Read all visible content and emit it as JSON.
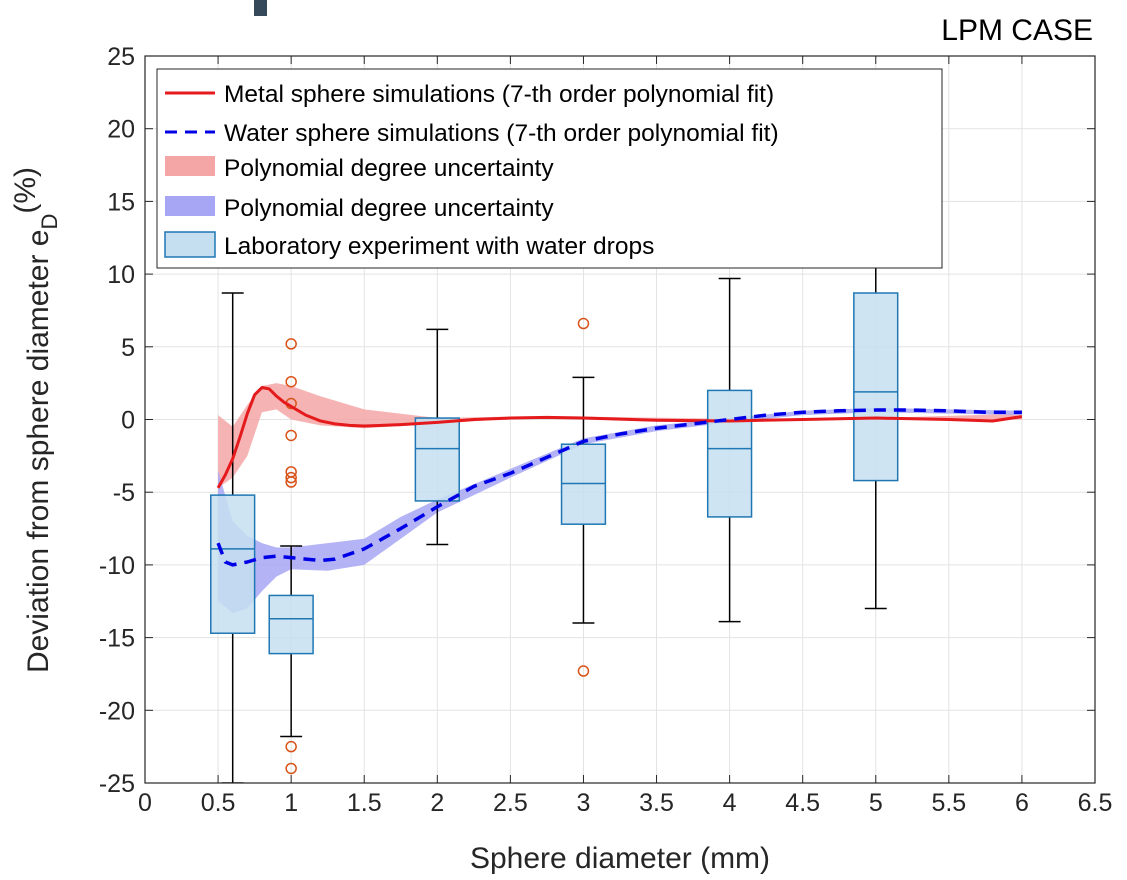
{
  "chart_data": {
    "type": "box",
    "title": "LPM CASE",
    "xlabel": "Sphere diameter (mm)",
    "ylabel_main": "Deviation from sphere diameter e",
    "ylabel_sub": "D",
    "ylabel_tail": "(%)",
    "xlim": [
      0,
      6.5
    ],
    "ylim": [
      -25,
      25
    ],
    "xticks": [
      0,
      0.5,
      1,
      1.5,
      2,
      2.5,
      3,
      3.5,
      4,
      4.5,
      5,
      5.5,
      6,
      6.5
    ],
    "xtick_labels": [
      "0",
      "0.5",
      "1",
      "1.5",
      "2",
      "2.5",
      "3",
      "3.5",
      "4",
      "4.5",
      "5",
      "5.5",
      "6",
      "6.5"
    ],
    "yticks": [
      -25,
      -20,
      -15,
      -10,
      -5,
      0,
      5,
      10,
      15,
      20,
      25
    ],
    "ytick_labels": [
      "-25",
      "-20",
      "-15",
      "-10",
      "-5",
      "0",
      "5",
      "10",
      "15",
      "20",
      "25"
    ],
    "grid": true,
    "legend_position": "top-left",
    "legend": [
      {
        "label": "Metal sphere simulations (7-th order polynomial fit)",
        "kind": "line-solid",
        "color": "#e41a1c"
      },
      {
        "label": "Water sphere simulations (7-th order polynomial fit)",
        "kind": "line-dashed",
        "color": "#0000e6"
      },
      {
        "label": "Polynomial degree uncertainty",
        "kind": "patch",
        "color": "#f4a6a6"
      },
      {
        "label": "Polynomial degree uncertainty",
        "kind": "patch",
        "color": "#a6a6f4"
      },
      {
        "label": "Laboratory experiment with water drops",
        "kind": "box",
        "color": "#c6dff0",
        "edge": "#1f77b4"
      }
    ],
    "metal_line": {
      "color": "#e41a1c",
      "x": [
        0.5,
        0.55,
        0.6,
        0.65,
        0.7,
        0.75,
        0.8,
        0.85,
        0.9,
        0.95,
        1.0,
        1.1,
        1.2,
        1.3,
        1.4,
        1.5,
        1.75,
        2.0,
        2.25,
        2.5,
        2.75,
        3.0,
        3.5,
        4.0,
        4.5,
        5.0,
        5.5,
        5.8,
        6.0
      ],
      "y": [
        -4.7,
        -3.8,
        -2.7,
        -1.2,
        0.4,
        1.7,
        2.2,
        2.1,
        1.6,
        1.2,
        0.9,
        0.3,
        -0.1,
        -0.3,
        -0.4,
        -0.45,
        -0.35,
        -0.2,
        0.0,
        0.1,
        0.15,
        0.1,
        -0.05,
        -0.1,
        0.0,
        0.1,
        0.0,
        -0.1,
        0.2
      ]
    },
    "metal_band": {
      "color": "#f4a6a6",
      "x": [
        0.5,
        0.6,
        0.7,
        0.8,
        0.9,
        1.0,
        1.2,
        1.5,
        2.0,
        2.5,
        3.0,
        4.0,
        5.0,
        6.0
      ],
      "upper": [
        0.3,
        -0.5,
        1.0,
        2.3,
        2.5,
        2.3,
        1.6,
        0.7,
        0.1,
        0.2,
        0.2,
        0.05,
        0.1,
        0.4
      ],
      "lower": [
        -4.7,
        -4.0,
        -2.5,
        0.5,
        0.7,
        0.0,
        -0.4,
        -0.6,
        -0.3,
        0.05,
        0.0,
        -0.15,
        0.0,
        0.0
      ]
    },
    "water_line": {
      "color": "#0000e6",
      "x": [
        0.5,
        0.55,
        0.6,
        0.7,
        0.8,
        0.9,
        1.0,
        1.1,
        1.2,
        1.3,
        1.5,
        1.75,
        2.0,
        2.25,
        2.5,
        2.75,
        3.0,
        3.25,
        3.5,
        3.75,
        4.0,
        4.25,
        4.5,
        4.75,
        5.0,
        5.25,
        5.5,
        5.75,
        6.0
      ],
      "y": [
        -8.5,
        -9.8,
        -10.0,
        -9.8,
        -9.5,
        -9.4,
        -9.5,
        -9.6,
        -9.7,
        -9.6,
        -8.9,
        -7.5,
        -6.0,
        -4.6,
        -3.7,
        -2.6,
        -1.5,
        -1.0,
        -0.6,
        -0.3,
        0.0,
        0.3,
        0.5,
        0.6,
        0.65,
        0.65,
        0.6,
        0.5,
        0.5
      ]
    },
    "water_band": {
      "color": "#a6a6f4",
      "x": [
        0.5,
        0.6,
        0.7,
        0.8,
        0.9,
        1.0,
        1.25,
        1.5,
        1.75,
        2.0,
        2.5,
        3.0,
        3.5,
        4.0,
        4.5,
        5.0,
        5.5,
        6.0
      ],
      "upper": [
        -3.5,
        -7.0,
        -8.0,
        -8.5,
        -8.8,
        -8.8,
        -8.5,
        -8.2,
        -6.7,
        -5.5,
        -3.4,
        -1.3,
        -0.4,
        0.1,
        0.6,
        0.8,
        0.7,
        0.6
      ],
      "lower": [
        -12.5,
        -13.3,
        -13.0,
        -11.8,
        -10.8,
        -10.3,
        -10.4,
        -10.0,
        -8.2,
        -6.4,
        -4.0,
        -1.7,
        -0.8,
        -0.2,
        0.3,
        0.5,
        0.4,
        0.3
      ]
    },
    "boxplots": {
      "box_color": "#c6dff0",
      "edge_color": "#1f77b4",
      "whisker_color": "#000000",
      "outlier_color": "#d95319",
      "box_halfwidth": 0.15,
      "items": [
        {
          "x": 0.6,
          "whisker_low": -25,
          "q1": -14.7,
          "median": -8.9,
          "q3": -5.2,
          "whisker_high": 8.7,
          "outliers": []
        },
        {
          "x": 1.0,
          "whisker_low": -21.8,
          "q1": -16.1,
          "median": -13.7,
          "q3": -12.1,
          "whisker_high": -8.7,
          "outliers": [
            5.2,
            2.6,
            1.1,
            -1.1,
            -3.6,
            -4.0,
            -4.3,
            -22.5,
            -24.0
          ]
        },
        {
          "x": 2.0,
          "whisker_low": -8.6,
          "q1": -5.6,
          "median": -2.0,
          "q3": 0.1,
          "whisker_high": 6.2,
          "outliers": []
        },
        {
          "x": 3.0,
          "whisker_low": -14.0,
          "q1": -7.2,
          "median": -4.4,
          "q3": -1.7,
          "whisker_high": 2.9,
          "outliers": [
            6.6,
            -17.3
          ]
        },
        {
          "x": 4.0,
          "whisker_low": -13.9,
          "q1": -6.7,
          "median": -2.0,
          "q3": 2.0,
          "whisker_high": 9.7,
          "outliers": []
        },
        {
          "x": 5.0,
          "whisker_low": -13.0,
          "q1": -4.2,
          "median": 1.9,
          "q3": 8.7,
          "whisker_high": 11.0,
          "outliers": []
        }
      ]
    }
  }
}
